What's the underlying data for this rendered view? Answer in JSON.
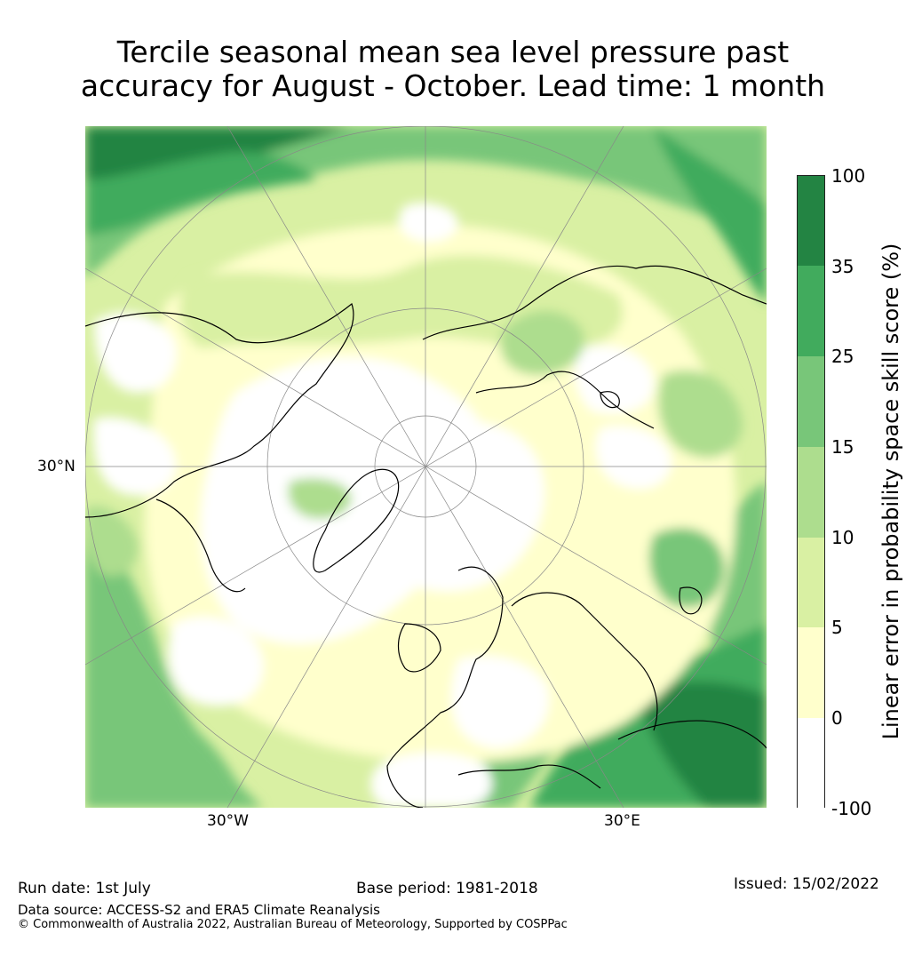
{
  "title_line1": "Tercile seasonal mean sea level pressure past",
  "title_line2": "accuracy for August - October. Lead time: 1 month",
  "map": {
    "lat_label": "30°N",
    "lon_labels": {
      "west": "30°W",
      "east": "30°E"
    },
    "colors": {
      "ocean_base": "#f7fbbf",
      "neg": "#ffffff",
      "c0_5": "#ffffcc",
      "c5_10": "#d9f0a3",
      "c10_15": "#addd8e",
      "c15_25": "#78c679",
      "c25_35": "#41ab5d",
      "c35_100": "#238443",
      "coast": "#000000"
    }
  },
  "colorbar": {
    "label": "Linear error in probability space skill score (%)",
    "ticks": [
      "100",
      "35",
      "25",
      "15",
      "10",
      "5",
      "0",
      "-100"
    ],
    "segments": [
      {
        "from": "35",
        "to": "100",
        "color": "#238443"
      },
      {
        "from": "25",
        "to": "35",
        "color": "#41ab5d"
      },
      {
        "from": "15",
        "to": "25",
        "color": "#78c679"
      },
      {
        "from": "10",
        "to": "15",
        "color": "#addd8e"
      },
      {
        "from": "5",
        "to": "10",
        "color": "#d9f0a3"
      },
      {
        "from": "0",
        "to": "5",
        "color": "#ffffcc"
      },
      {
        "from": "-100",
        "to": "0",
        "color": "#ffffff"
      }
    ]
  },
  "footer": {
    "run_date": "Run date: 1st July",
    "base_period": "Base period: 1981-2018",
    "issued": "Issued: 15/02/2022",
    "data_source": "Data source: ACCESS-S2 and ERA5 Climate Reanalysis",
    "copyright": "© Commonwealth of Australia 2022, Australian Bureau of Meteorology, Supported by COSPPac"
  }
}
